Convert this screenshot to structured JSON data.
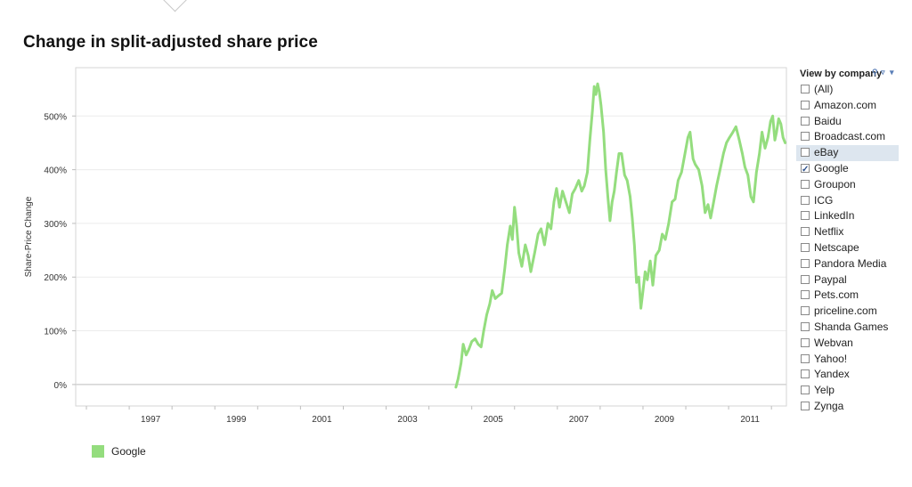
{
  "title": "Change in split-adjusted share price",
  "chart_data": {
    "type": "line",
    "title": "Change in split-adjusted share price",
    "xlabel": "",
    "ylabel": "Share-Price Change",
    "x_ticks": [
      "1997",
      "1999",
      "2001",
      "2003",
      "2005",
      "2007",
      "2009",
      "2011"
    ],
    "y_ticks": [
      "0%",
      "100%",
      "200%",
      "300%",
      "400%",
      "500%"
    ],
    "xlim": [
      1995.75,
      2012.35
    ],
    "ylim": [
      -40,
      590
    ],
    "grid": true,
    "legend_position": "bottom-left",
    "series": [
      {
        "name": "Google",
        "color": "#94dd7e",
        "points": [
          [
            2004.63,
            -5
          ],
          [
            2004.68,
            10
          ],
          [
            2004.75,
            40
          ],
          [
            2004.8,
            75
          ],
          [
            2004.87,
            55
          ],
          [
            2004.93,
            65
          ],
          [
            2005.0,
            80
          ],
          [
            2005.08,
            85
          ],
          [
            2005.15,
            75
          ],
          [
            2005.22,
            70
          ],
          [
            2005.28,
            100
          ],
          [
            2005.35,
            130
          ],
          [
            2005.42,
            150
          ],
          [
            2005.48,
            175
          ],
          [
            2005.55,
            160
          ],
          [
            2005.62,
            165
          ],
          [
            2005.7,
            170
          ],
          [
            2005.77,
            215
          ],
          [
            2005.83,
            260
          ],
          [
            2005.9,
            295
          ],
          [
            2005.95,
            270
          ],
          [
            2006.0,
            330
          ],
          [
            2006.05,
            295
          ],
          [
            2006.1,
            245
          ],
          [
            2006.17,
            220
          ],
          [
            2006.25,
            260
          ],
          [
            2006.32,
            240
          ],
          [
            2006.38,
            210
          ],
          [
            2006.47,
            245
          ],
          [
            2006.55,
            280
          ],
          [
            2006.62,
            290
          ],
          [
            2006.7,
            260
          ],
          [
            2006.78,
            300
          ],
          [
            2006.85,
            290
          ],
          [
            2006.92,
            340
          ],
          [
            2006.98,
            365
          ],
          [
            2007.05,
            330
          ],
          [
            2007.12,
            360
          ],
          [
            2007.2,
            340
          ],
          [
            2007.28,
            320
          ],
          [
            2007.35,
            355
          ],
          [
            2007.42,
            365
          ],
          [
            2007.5,
            380
          ],
          [
            2007.57,
            360
          ],
          [
            2007.63,
            370
          ],
          [
            2007.7,
            395
          ],
          [
            2007.76,
            455
          ],
          [
            2007.82,
            510
          ],
          [
            2007.86,
            555
          ],
          [
            2007.9,
            540
          ],
          [
            2007.94,
            560
          ],
          [
            2007.98,
            545
          ],
          [
            2008.02,
            520
          ],
          [
            2008.08,
            470
          ],
          [
            2008.13,
            400
          ],
          [
            2008.18,
            350
          ],
          [
            2008.23,
            305
          ],
          [
            2008.28,
            340
          ],
          [
            2008.33,
            360
          ],
          [
            2008.38,
            395
          ],
          [
            2008.44,
            430
          ],
          [
            2008.5,
            430
          ],
          [
            2008.57,
            390
          ],
          [
            2008.63,
            380
          ],
          [
            2008.7,
            350
          ],
          [
            2008.75,
            310
          ],
          [
            2008.8,
            260
          ],
          [
            2008.85,
            190
          ],
          [
            2008.9,
            200
          ],
          [
            2008.95,
            142
          ],
          [
            2009.0,
            175
          ],
          [
            2009.05,
            210
          ],
          [
            2009.1,
            195
          ],
          [
            2009.17,
            230
          ],
          [
            2009.23,
            185
          ],
          [
            2009.3,
            240
          ],
          [
            2009.38,
            250
          ],
          [
            2009.45,
            280
          ],
          [
            2009.52,
            270
          ],
          [
            2009.6,
            300
          ],
          [
            2009.68,
            340
          ],
          [
            2009.75,
            345
          ],
          [
            2009.82,
            380
          ],
          [
            2009.9,
            395
          ],
          [
            2009.98,
            430
          ],
          [
            2010.05,
            460
          ],
          [
            2010.1,
            470
          ],
          [
            2010.17,
            420
          ],
          [
            2010.22,
            410
          ],
          [
            2010.3,
            400
          ],
          [
            2010.38,
            370
          ],
          [
            2010.45,
            320
          ],
          [
            2010.52,
            335
          ],
          [
            2010.58,
            310
          ],
          [
            2010.65,
            340
          ],
          [
            2010.72,
            370
          ],
          [
            2010.8,
            400
          ],
          [
            2010.88,
            430
          ],
          [
            2010.95,
            450
          ],
          [
            2011.02,
            460
          ],
          [
            2011.1,
            470
          ],
          [
            2011.17,
            480
          ],
          [
            2011.25,
            455
          ],
          [
            2011.32,
            430
          ],
          [
            2011.38,
            405
          ],
          [
            2011.45,
            390
          ],
          [
            2011.52,
            350
          ],
          [
            2011.58,
            340
          ],
          [
            2011.65,
            395
          ],
          [
            2011.72,
            430
          ],
          [
            2011.78,
            470
          ],
          [
            2011.85,
            440
          ],
          [
            2011.92,
            460
          ],
          [
            2011.98,
            490
          ],
          [
            2012.03,
            500
          ],
          [
            2012.08,
            455
          ],
          [
            2012.12,
            470
          ],
          [
            2012.17,
            495
          ],
          [
            2012.22,
            485
          ],
          [
            2012.27,
            460
          ],
          [
            2012.32,
            450
          ]
        ]
      }
    ]
  },
  "filter": {
    "header": "View by company",
    "icons": [
      "search-icon",
      "filter-icon",
      "dropdown-icon"
    ],
    "options": [
      {
        "label": "(All)",
        "checked": false
      },
      {
        "label": "Amazon.com",
        "checked": false
      },
      {
        "label": "Baidu",
        "checked": false
      },
      {
        "label": "Broadcast.com",
        "checked": false
      },
      {
        "label": "eBay",
        "checked": false,
        "highlighted": true
      },
      {
        "label": "Google",
        "checked": true
      },
      {
        "label": "Groupon",
        "checked": false
      },
      {
        "label": "ICG",
        "checked": false
      },
      {
        "label": "LinkedIn",
        "checked": false
      },
      {
        "label": "Netflix",
        "checked": false
      },
      {
        "label": "Netscape",
        "checked": false
      },
      {
        "label": "Pandora Media",
        "checked": false
      },
      {
        "label": "Paypal",
        "checked": false
      },
      {
        "label": "Pets.com",
        "checked": false
      },
      {
        "label": "priceline.com",
        "checked": false
      },
      {
        "label": "Shanda Games",
        "checked": false
      },
      {
        "label": "Webvan",
        "checked": false
      },
      {
        "label": "Yahoo!",
        "checked": false
      },
      {
        "label": "Yandex",
        "checked": false
      },
      {
        "label": "Yelp",
        "checked": false
      },
      {
        "label": "Zynga",
        "checked": false
      }
    ]
  },
  "legend": {
    "label": "Google",
    "color": "#94dd7e"
  }
}
